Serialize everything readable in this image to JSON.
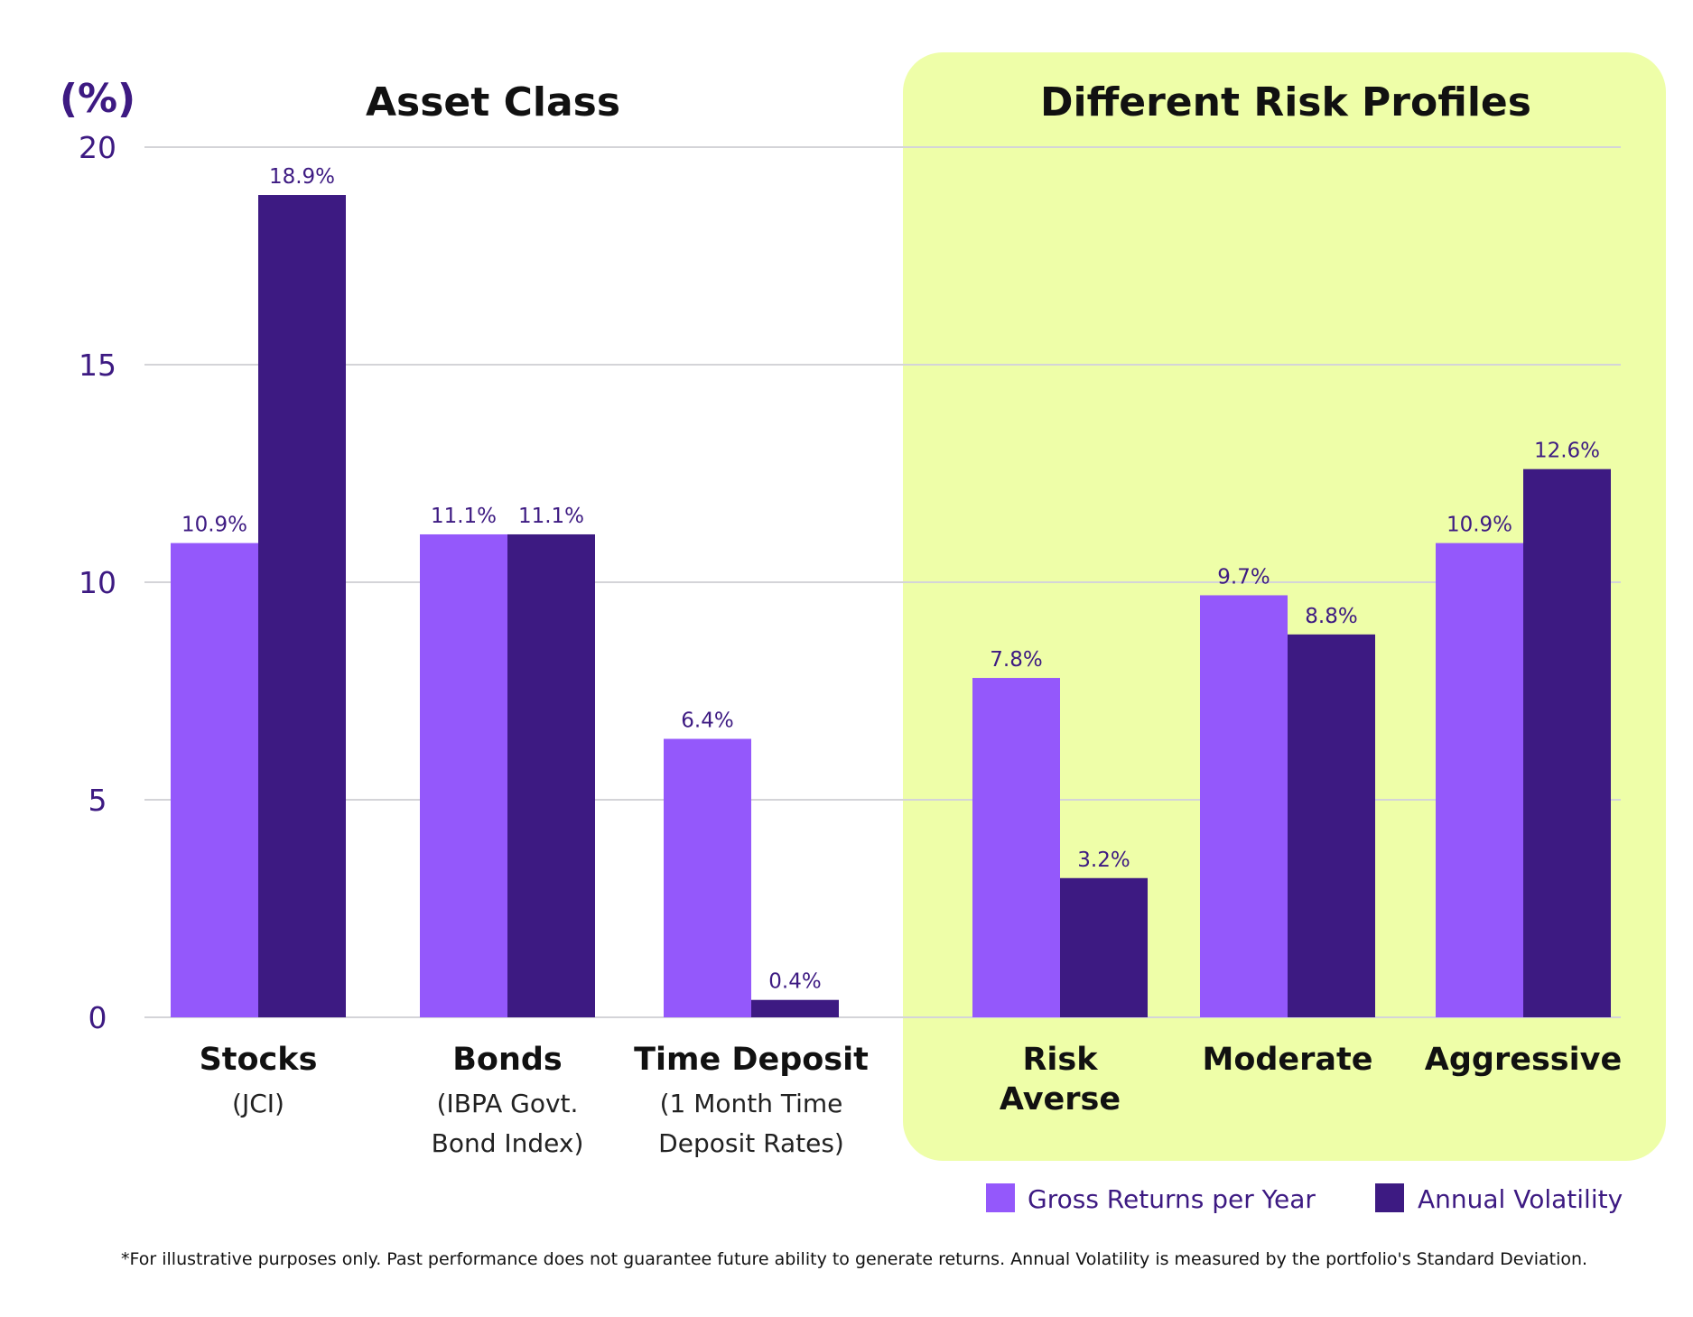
{
  "colors": {
    "gross": "#9458fb",
    "volatility": "#3d1a82",
    "highlight_panel": "#eefea8",
    "grid": "#d4d4d8",
    "axis_text": "#3d1a82"
  },
  "chart_data": {
    "type": "bar",
    "unit_label": "(%)",
    "ylim": [
      0,
      20
    ],
    "yticks": [
      0,
      5,
      10,
      15,
      20
    ],
    "grid": true,
    "groups": [
      {
        "name": "Asset Class",
        "category_indices": [
          0,
          1,
          2
        ]
      },
      {
        "name": "Different Risk Profiles",
        "category_indices": [
          3,
          4,
          5
        ],
        "highlighted": true
      }
    ],
    "categories": [
      {
        "name": "Stocks",
        "subtitle": [
          "(JCI)"
        ]
      },
      {
        "name": "Bonds",
        "subtitle": [
          "(IBPA Govt.",
          "Bond Index)"
        ]
      },
      {
        "name": "Time Deposit",
        "subtitle": [
          "(1 Month Time",
          "Deposit Rates)"
        ]
      },
      {
        "name": "Risk Averse",
        "name_lines": [
          "Risk",
          "Averse"
        ],
        "subtitle": []
      },
      {
        "name": "Moderate",
        "subtitle": []
      },
      {
        "name": "Aggressive",
        "subtitle": []
      }
    ],
    "series": [
      {
        "name": "Gross Returns per Year",
        "color_key": "gross",
        "values": [
          10.9,
          11.1,
          6.4,
          7.8,
          9.7,
          10.9
        ],
        "labels": [
          "10.9%",
          "11.1%",
          "6.4%",
          "7.8%",
          "9.7%",
          "10.9%"
        ]
      },
      {
        "name": "Annual Volatility",
        "color_key": "volatility",
        "values": [
          18.9,
          11.1,
          0.4,
          3.2,
          8.8,
          12.6
        ],
        "labels": [
          "18.9%",
          "11.1%",
          "0.4%",
          "3.2%",
          "8.8%",
          "12.6%"
        ]
      }
    ],
    "legend_position": "bottom-right"
  },
  "footnote": "*For illustrative purposes only. Past performance does not guarantee future  ability to generate returns. Annual Volatility is measured by the portfolio's Standard Deviation."
}
